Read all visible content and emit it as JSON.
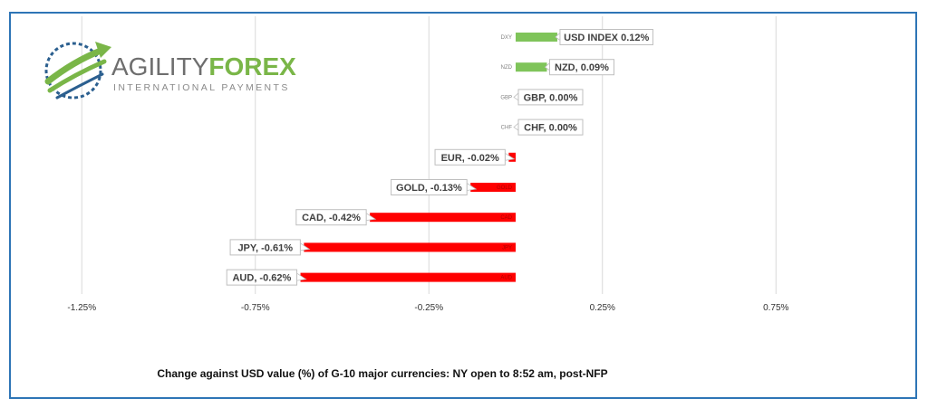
{
  "brand": {
    "name_part1": "AGILITY",
    "name_part2": "FOREX",
    "tagline": "INTERNATIONAL PAYMENTS",
    "colors": {
      "grey": "#6e6e6e",
      "green": "#7ab648",
      "blue": "#2b5f8f"
    }
  },
  "chart_data": {
    "type": "bar",
    "orientation": "horizontal",
    "categories": [
      "DXY",
      "NZD",
      "GBP",
      "CHF",
      "EUR",
      "GOLD",
      "CAD",
      "JPY",
      "AUD"
    ],
    "values": [
      0.12,
      0.09,
      0.0,
      0.0,
      -0.02,
      -0.13,
      -0.42,
      -0.61,
      -0.62
    ],
    "data_labels": [
      "USD INDEX 0.12%",
      "NZD, 0.09%",
      "GBP, 0.00%",
      "CHF, 0.00%",
      "EUR, -0.02%",
      "GOLD, -0.13%",
      "CAD, -0.42%",
      "JPY, -0.61%",
      "AUD, -0.62%"
    ],
    "x_ticks": [
      -1.25,
      -0.75,
      -0.25,
      0.25,
      0.75
    ],
    "x_tick_labels": [
      "-1.25%",
      "-0.75%",
      "-0.25%",
      "0.25%",
      "0.75%"
    ],
    "xlim": [
      -1.5,
      1.0
    ],
    "grid": "vertical",
    "colors": {
      "positive": "#7fc45a",
      "negative": "#ff0000",
      "grid": "#d9d9d9",
      "frame": "#2e75b6"
    },
    "caption": "Change against  USD value (%)  of  G-10 major currencies: NY open to 8:52 am, post-NFP"
  }
}
